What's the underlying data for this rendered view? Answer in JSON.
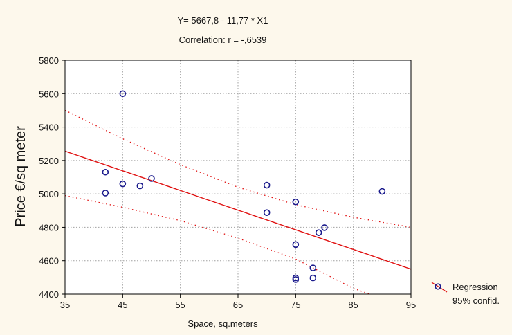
{
  "chart_data": {
    "type": "scatter",
    "title_line1": "Y= 5667,8 - 11,77 * X1",
    "title_line2": "Correlation: r = -,6539",
    "xlabel": "Space, sq.meters",
    "ylabel": "Price €/sq meter",
    "xlim": [
      35,
      95
    ],
    "ylim": [
      4400,
      5800
    ],
    "xticks": [
      35,
      45,
      55,
      65,
      75,
      85,
      95
    ],
    "yticks": [
      4400,
      4600,
      4800,
      5000,
      5200,
      5400,
      5600,
      5800
    ],
    "grid": true,
    "legend_position": "right",
    "legend": [
      "Regression",
      "95% confid."
    ],
    "regression": {
      "intercept": 5667.8,
      "slope": -11.77
    },
    "confidence_band": {
      "upper": [
        [
          35,
          5500
        ],
        [
          45,
          5330
        ],
        [
          55,
          5175
        ],
        [
          65,
          5040
        ],
        [
          75,
          4935
        ],
        [
          85,
          4860
        ],
        [
          95,
          4800
        ]
      ],
      "lower": [
        [
          35,
          4990
        ],
        [
          45,
          4920
        ],
        [
          55,
          4840
        ],
        [
          65,
          4735
        ],
        [
          75,
          4610
        ],
        [
          85,
          4435
        ],
        [
          95,
          4310
        ]
      ]
    },
    "points": [
      [
        42,
        5130
      ],
      [
        42,
        5005
      ],
      [
        45,
        5600
      ],
      [
        45,
        5060
      ],
      [
        48,
        5048
      ],
      [
        50,
        5092
      ],
      [
        70,
        5052
      ],
      [
        70,
        4888
      ],
      [
        75,
        4952
      ],
      [
        75,
        4697
      ],
      [
        75,
        4497
      ],
      [
        75,
        4487
      ],
      [
        78,
        4557
      ],
      [
        78,
        4497
      ],
      [
        79,
        4768
      ],
      [
        80,
        4798
      ],
      [
        90,
        5015
      ]
    ],
    "colors": {
      "line": "#e01010",
      "marker": "#1a1a8c",
      "grid": "#a0a0a0",
      "background": "#fdf8ec",
      "plot_bg": "#ffffff"
    }
  }
}
